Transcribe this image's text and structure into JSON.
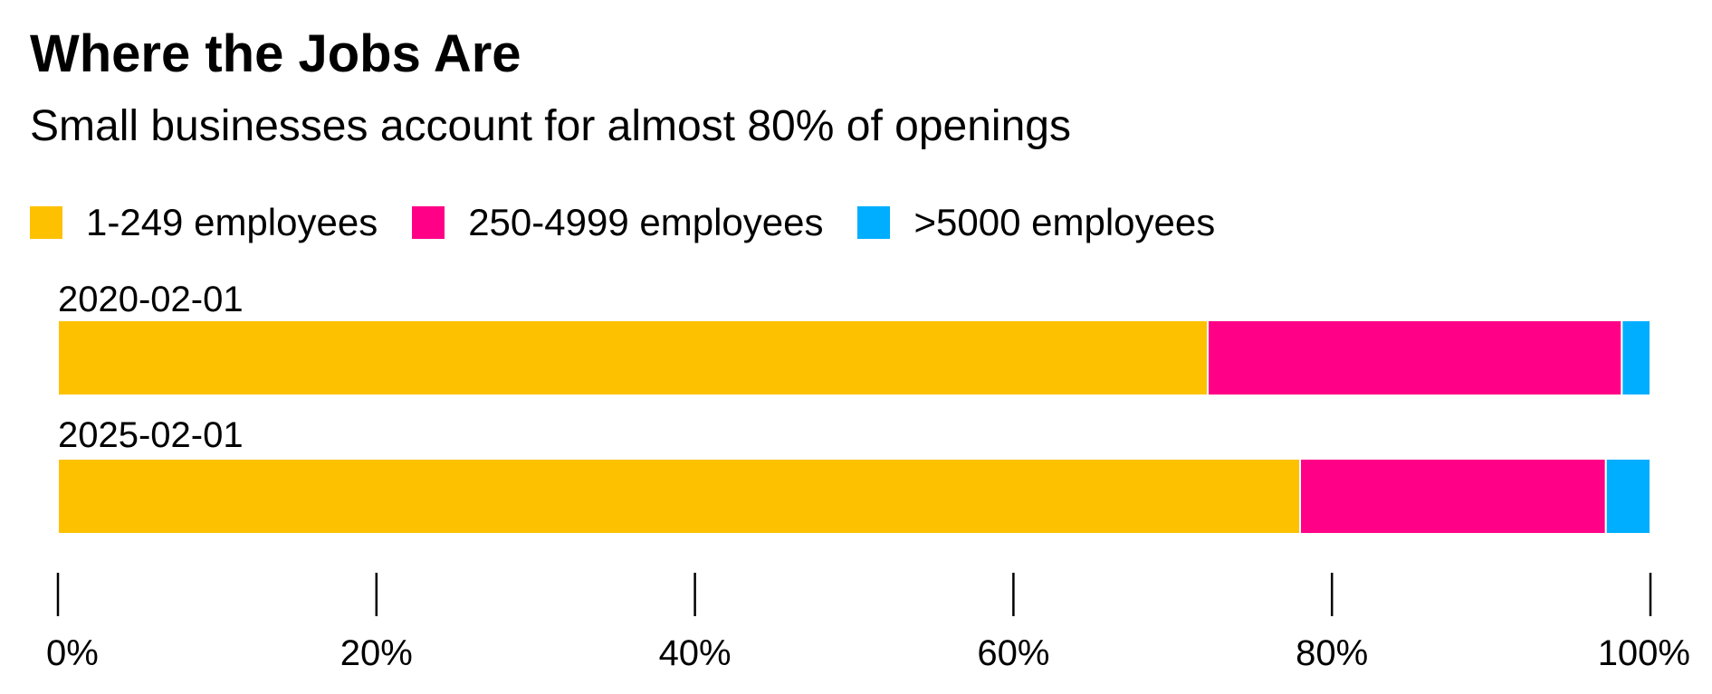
{
  "chart_data": {
    "type": "bar",
    "orientation": "horizontal",
    "stacked": true,
    "title": "Where the Jobs Are",
    "subtitle": "Small businesses account for almost 80% of openings",
    "categories": [
      "2020-02-01",
      "2025-02-01"
    ],
    "series": [
      {
        "name": "1-249 employees",
        "color": "#FDC100",
        "values": [
          72.2,
          78.0
        ]
      },
      {
        "name": "250-4999 employees",
        "color": "#FF0087",
        "values": [
          26.0,
          19.2
        ]
      },
      {
        "name": ">5000 employees",
        "color": "#00AEFF",
        "values": [
          1.8,
          2.8
        ]
      }
    ],
    "xlim": [
      0,
      100
    ],
    "x_ticks": [
      0,
      20,
      40,
      60,
      80,
      100
    ],
    "x_tick_labels": [
      "0%",
      "20%",
      "40%",
      "60%",
      "80%",
      "100%"
    ],
    "legend_position": "top-left",
    "grid": false
  }
}
